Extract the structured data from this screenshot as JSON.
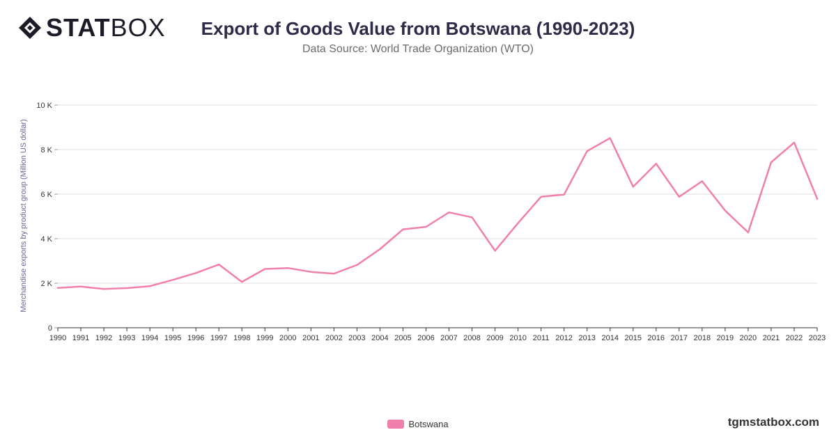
{
  "brand": {
    "logo_bold": "STAT",
    "logo_light": "BOX",
    "logo_icon": "diamond-logo-icon",
    "footer": "tgmstatbox.com"
  },
  "colors": {
    "series": "#f07fab",
    "grid": "#dddddd",
    "axis": "#333333"
  },
  "chart_data": {
    "type": "line",
    "title": "Export of Goods Value from Botswana (1990-2023)",
    "subtitle": "Data Source: World Trade Organization (WTO)",
    "xlabel": "",
    "ylabel": "Merchandise exports by product group (Million US dollar)",
    "ylim": [
      0,
      10000
    ],
    "yticks": [
      {
        "value": 0,
        "label": "0"
      },
      {
        "value": 2000,
        "label": "2 K"
      },
      {
        "value": 4000,
        "label": "4 K"
      },
      {
        "value": 6000,
        "label": "6 K"
      },
      {
        "value": 8000,
        "label": "8 K"
      },
      {
        "value": 10000,
        "label": "10 K"
      }
    ],
    "grid": true,
    "legend_position": "bottom-center",
    "x": [
      "1990",
      "1991",
      "1992",
      "1993",
      "1994",
      "1995",
      "1996",
      "1997",
      "1998",
      "1999",
      "2000",
      "2001",
      "2002",
      "2003",
      "2004",
      "2005",
      "2006",
      "2007",
      "2008",
      "2009",
      "2010",
      "2011",
      "2012",
      "2013",
      "2014",
      "2015",
      "2016",
      "2017",
      "2018",
      "2019",
      "2020",
      "2021",
      "2022",
      "2023"
    ],
    "series": [
      {
        "name": "Botswana",
        "values": [
          1790,
          1850,
          1740,
          1780,
          1870,
          2150,
          2460,
          2840,
          2060,
          2640,
          2680,
          2510,
          2430,
          2820,
          3530,
          4420,
          4530,
          5180,
          4960,
          3460,
          4700,
          5880,
          5980,
          7930,
          8520,
          6330,
          7370,
          5880,
          6580,
          5260,
          4280,
          7430,
          8320,
          5790
        ]
      }
    ]
  }
}
